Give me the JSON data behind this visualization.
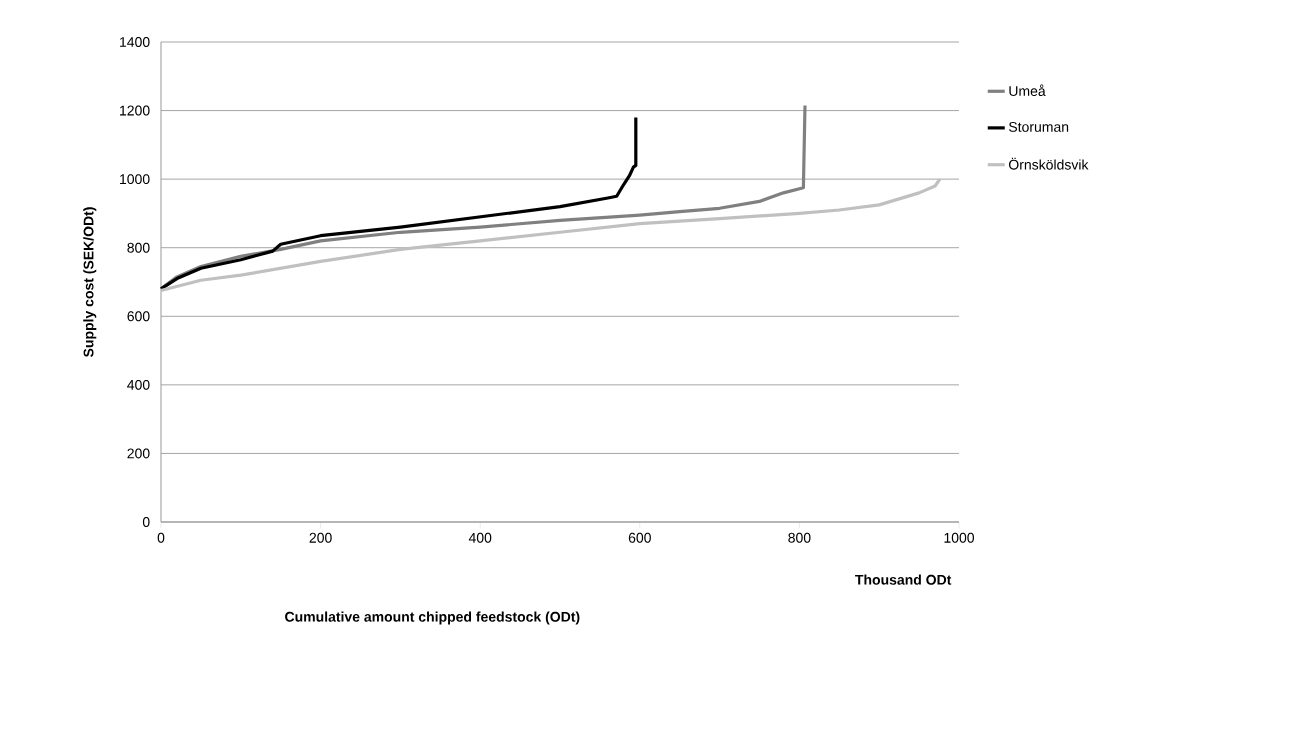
{
  "chart_data": {
    "type": "line",
    "xlabel": "Cumulative amount chipped feedstock (ODt)",
    "ylabel": "Supply cost (SEK/ODt)",
    "annotations": [
      "Thousand ODt"
    ],
    "series": [
      {
        "name": "Umeå",
        "color": "#808080",
        "x": [
          0,
          20,
          50,
          100,
          150,
          200,
          300,
          400,
          500,
          600,
          650,
          700,
          750,
          780,
          805,
          807
        ],
        "values": [
          680,
          715,
          745,
          775,
          795,
          820,
          845,
          860,
          880,
          895,
          905,
          915,
          935,
          960,
          975,
          1215
        ]
      },
      {
        "name": "Storuman",
        "color": "#000000",
        "x": [
          0,
          20,
          50,
          100,
          140,
          150,
          200,
          300,
          400,
          500,
          560,
          571,
          580,
          587,
          592,
          595,
          595
        ],
        "values": [
          680,
          710,
          740,
          765,
          790,
          810,
          835,
          860,
          890,
          920,
          945,
          950,
          985,
          1010,
          1035,
          1040,
          1180
        ]
      },
      {
        "name": "Örnsköldsvik",
        "color": "#c0c0c0",
        "x": [
          0,
          50,
          100,
          200,
          300,
          400,
          500,
          600,
          700,
          800,
          850,
          900,
          950,
          970,
          976
        ],
        "values": [
          675,
          705,
          720,
          760,
          795,
          820,
          845,
          870,
          885,
          900,
          910,
          925,
          960,
          980,
          1000
        ]
      }
    ],
    "xlim": [
      0,
      1000
    ],
    "ylim": [
      0,
      1400
    ],
    "xticks": [
      0,
      200,
      400,
      600,
      800,
      1000
    ],
    "yticks": [
      0,
      200,
      400,
      600,
      800,
      1000,
      1200,
      1400
    ],
    "grid": "y",
    "legend": "right",
    "line_style": "solid",
    "marker": "none"
  }
}
